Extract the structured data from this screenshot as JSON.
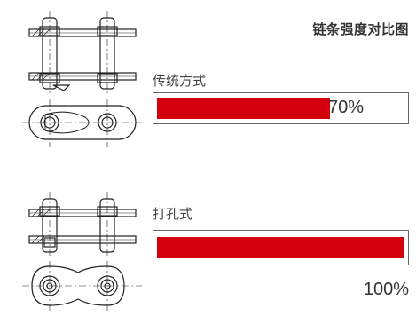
{
  "title": "链条强度对比图",
  "accent_color": "#d5000e",
  "chart_data": {
    "type": "bar",
    "orientation": "horizontal",
    "title": "链条强度对比图",
    "categories": [
      "传统方式",
      "打孔式"
    ],
    "values": [
      70,
      100
    ],
    "value_labels": [
      "70%",
      "100%"
    ],
    "unit": "%",
    "xlim": [
      0,
      100
    ],
    "grid": false,
    "legend": "none"
  }
}
